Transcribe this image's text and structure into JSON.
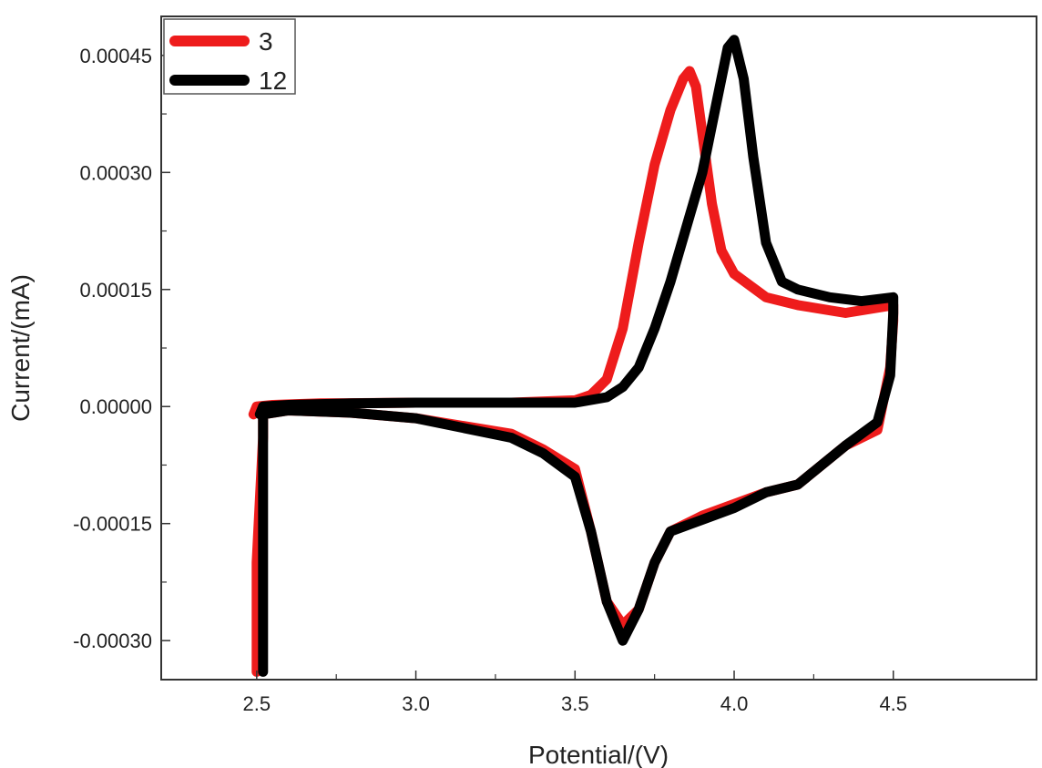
{
  "chart_data": {
    "type": "line",
    "title": "",
    "xlabel": "Potential/(V)",
    "ylabel": "Current/(mA)",
    "xlim": [
      2.2,
      4.95
    ],
    "ylim": [
      -0.00035,
      0.0005
    ],
    "x_ticks": [
      2.5,
      3.0,
      3.5,
      4.0,
      4.5
    ],
    "x_tick_labels": [
      "2.5",
      "3.0",
      "3.5",
      "4.0",
      "4.5"
    ],
    "y_ticks": [
      0.00045,
      0.0003,
      0.00015,
      0.0,
      -0.00015,
      -0.0003
    ],
    "y_tick_labels": [
      "0.00045",
      "0.00030",
      "0.00015",
      "0.00000",
      "-0.00015",
      "-0.00030"
    ],
    "grid": false,
    "legend_position": "top-left",
    "colors": {
      "3": "#ee1c1c",
      "12": "#000000"
    },
    "series": [
      {
        "name": "3",
        "x": [
          2.49,
          2.5,
          2.55,
          2.7,
          3.0,
          3.3,
          3.5,
          3.55,
          3.6,
          3.65,
          3.7,
          3.75,
          3.8,
          3.84,
          3.86,
          3.88,
          3.9,
          3.93,
          3.96,
          4.0,
          4.1,
          4.2,
          4.35,
          4.5,
          4.5,
          4.49,
          4.45,
          4.35,
          4.2,
          4.1,
          4.0,
          3.9,
          3.8,
          3.75,
          3.7,
          3.65,
          3.6,
          3.55,
          3.5,
          3.4,
          3.3,
          3.0,
          2.8,
          2.6,
          2.52,
          2.52,
          2.5,
          2.5
        ],
        "y": [
          -1e-05,
          0.0,
          2e-06,
          4e-06,
          5e-06,
          5e-06,
          8e-06,
          1.5e-05,
          3.5e-05,
          0.0001,
          0.00021,
          0.00031,
          0.00038,
          0.00042,
          0.00043,
          0.00041,
          0.00035,
          0.00026,
          0.0002,
          0.00017,
          0.00014,
          0.00013,
          0.00012,
          0.00013,
          0.00011,
          5e-05,
          -3e-05,
          -5e-05,
          -0.0001,
          -0.00011,
          -0.000125,
          -0.00014,
          -0.00016,
          -0.0002,
          -0.00026,
          -0.00028,
          -0.00025,
          -0.00016,
          -8e-05,
          -5.5e-05,
          -3.5e-05,
          -1.5e-05,
          -8e-06,
          -5e-06,
          -1e-05,
          -4e-05,
          -0.0002,
          -0.00034
        ]
      },
      {
        "name": "12",
        "x": [
          2.51,
          2.52,
          2.6,
          2.8,
          3.0,
          3.3,
          3.5,
          3.6,
          3.65,
          3.7,
          3.75,
          3.8,
          3.85,
          3.9,
          3.95,
          3.98,
          4.0,
          4.03,
          4.06,
          4.1,
          4.15,
          4.2,
          4.3,
          4.4,
          4.5,
          4.5,
          4.49,
          4.45,
          4.35,
          4.2,
          4.1,
          4.0,
          3.9,
          3.8,
          3.75,
          3.7,
          3.65,
          3.6,
          3.55,
          3.5,
          3.4,
          3.3,
          3.0,
          2.8,
          2.6,
          2.52,
          2.52,
          2.52
        ],
        "y": [
          -1e-05,
          0.0,
          2e-06,
          4e-06,
          5e-06,
          5e-06,
          5e-06,
          1.2e-05,
          2.5e-05,
          5e-05,
          0.0001,
          0.00016,
          0.00023,
          0.0003,
          0.0004,
          0.00046,
          0.00047,
          0.00042,
          0.00032,
          0.00021,
          0.00016,
          0.00015,
          0.00014,
          0.000135,
          0.00014,
          0.00012,
          4e-05,
          -2e-05,
          -5e-05,
          -0.0001,
          -0.00011,
          -0.00013,
          -0.000145,
          -0.00016,
          -0.0002,
          -0.00026,
          -0.0003,
          -0.00025,
          -0.00016,
          -9e-05,
          -6e-05,
          -4e-05,
          -1.5e-05,
          -8e-06,
          -5e-06,
          -1e-05,
          -4e-05,
          -0.00034
        ]
      }
    ]
  }
}
